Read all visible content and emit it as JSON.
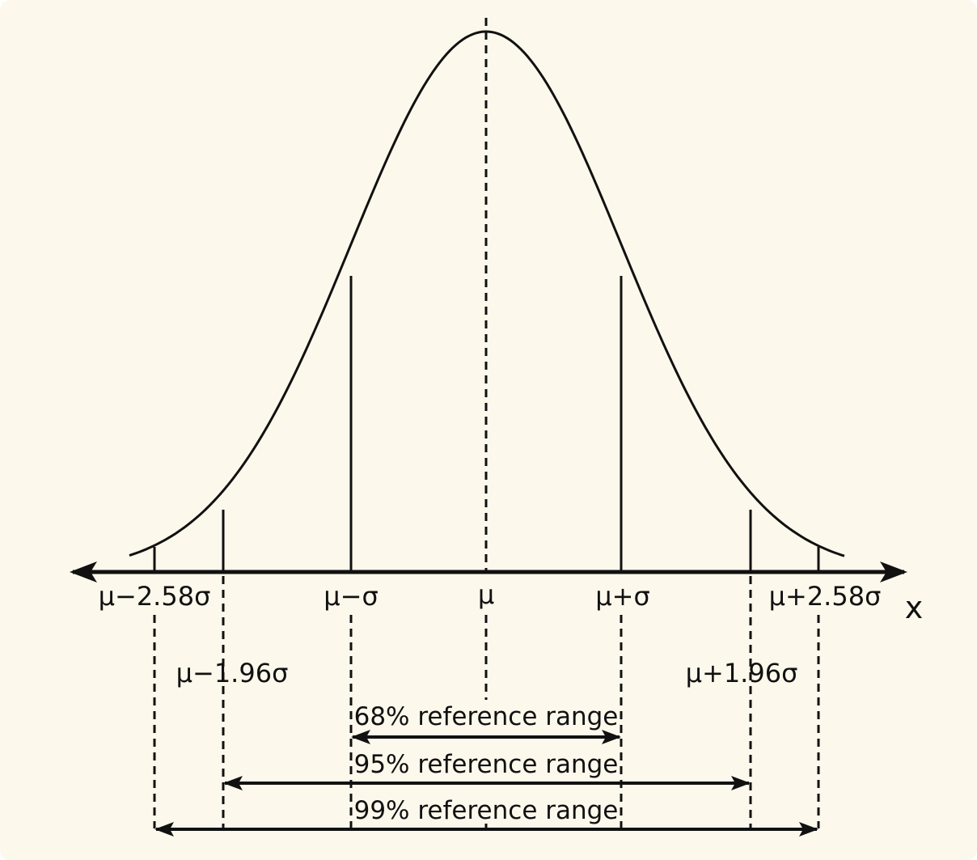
{
  "colors": {
    "background": "#fdf8ec",
    "ink": "#111111"
  },
  "diagram": {
    "axis_variable": "x",
    "labels": {
      "mu": "μ",
      "mu_minus_sigma": "μ−σ",
      "mu_plus_sigma": "μ+σ",
      "mu_minus_258": "μ−2.58σ",
      "mu_plus_258": "μ+2.58σ",
      "mu_minus_196": "μ−1.96σ",
      "mu_plus_196": "μ+1.96σ"
    },
    "ranges": {
      "r68": "68% reference range",
      "r95": "95% reference range",
      "r99": "99% reference range"
    }
  }
}
